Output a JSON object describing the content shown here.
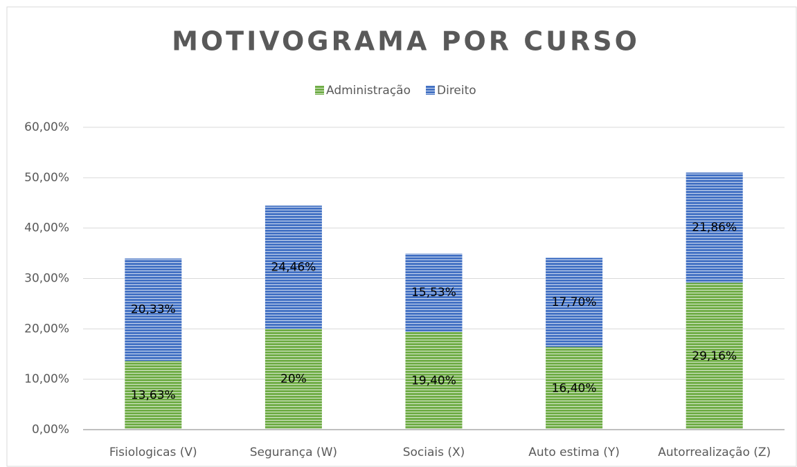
{
  "chart_data": {
    "type": "bar",
    "stacked": true,
    "title": "MOTIVOGRAMA POR CURSO",
    "categories": [
      "Fisiologicas (V)",
      "Segurança (W)",
      "Sociais (X)",
      "Auto estima (Y)",
      "Autorrealização (Z)"
    ],
    "series": [
      {
        "name": "Administração",
        "color": "#70ad47",
        "values": [
          13.63,
          20,
          19.4,
          16.4,
          29.16
        ],
        "value_labels": [
          "13,63%",
          "20%",
          "19,40%",
          "16,40%",
          "29,16%"
        ]
      },
      {
        "name": "Direito",
        "color": "#4472c4",
        "values": [
          20.33,
          24.46,
          15.53,
          17.7,
          21.86
        ],
        "value_labels": [
          "20,33%",
          "24,46%",
          "15,53%",
          "17,70%",
          "21,86%"
        ]
      }
    ],
    "ylim": [
      0,
      60
    ],
    "yticks": [
      {
        "value": 0,
        "label": "0,00%"
      },
      {
        "value": 10,
        "label": "10,00%"
      },
      {
        "value": 20,
        "label": "20,00%"
      },
      {
        "value": 30,
        "label": "30,00%"
      },
      {
        "value": 40,
        "label": "40,00%"
      },
      {
        "value": 50,
        "label": "50,00%"
      },
      {
        "value": 60,
        "label": "60,00%"
      }
    ],
    "grid": true,
    "legend": "top"
  }
}
